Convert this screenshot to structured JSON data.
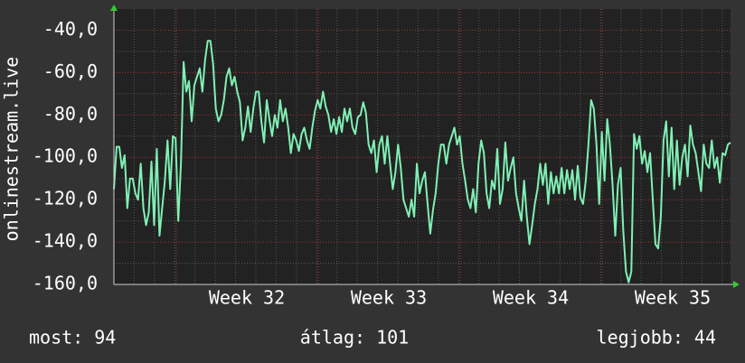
{
  "chart_data": {
    "type": "line",
    "y_label": "onlinestream.live",
    "x_labels": [
      "Week 32",
      "Week 33",
      "Week 34",
      "Week 35"
    ],
    "ylim": [
      -160,
      -30
    ],
    "yticks": [
      {
        "value": -160,
        "label": "-160,0"
      },
      {
        "value": -140,
        "label": "-140,0"
      },
      {
        "value": -120,
        "label": "-120,0"
      },
      {
        "value": -100,
        "label": "-100,0"
      },
      {
        "value": -80,
        "label": "-80,0"
      },
      {
        "value": -60,
        "label": "-60,0"
      },
      {
        "value": -40,
        "label": "-40,0"
      }
    ],
    "grid": true,
    "series": [
      {
        "color": "#7ff0b4",
        "values": [
          -115,
          -95,
          -95,
          -105,
          -99,
          -124,
          -110,
          -110,
          -117,
          -120,
          -103,
          -124,
          -132,
          -126,
          -102,
          -132,
          -96,
          -137,
          -124,
          -111,
          -92,
          -115,
          -90,
          -91,
          -130,
          -103,
          -55,
          -69,
          -64,
          -83,
          -66,
          -62,
          -58,
          -69,
          -54,
          -45,
          -45,
          -56,
          -77,
          -83,
          -80,
          -73,
          -62,
          -58,
          -66,
          -62,
          -69,
          -74,
          -92,
          -86,
          -76,
          -88,
          -77,
          -69,
          -69,
          -83,
          -93,
          -73,
          -82,
          -90,
          -80,
          -86,
          -73,
          -83,
          -77,
          -86,
          -98,
          -89,
          -92,
          -97,
          -89,
          -86,
          -92,
          -96,
          -86,
          -78,
          -73,
          -77,
          -69,
          -76,
          -80,
          -88,
          -82,
          -89,
          -81,
          -88,
          -77,
          -83,
          -77,
          -86,
          -89,
          -81,
          -80,
          -74,
          -79,
          -94,
          -98,
          -92,
          -107,
          -94,
          -90,
          -103,
          -90,
          -103,
          -115,
          -107,
          -94,
          -105,
          -120,
          -124,
          -128,
          -120,
          -128,
          -103,
          -117,
          -111,
          -107,
          -122,
          -136,
          -125,
          -117,
          -103,
          -94,
          -94,
          -103,
          -94,
          -90,
          -86,
          -94,
          -90,
          -103,
          -111,
          -120,
          -124,
          -115,
          -126,
          -103,
          -92,
          -98,
          -117,
          -124,
          -111,
          -115,
          -96,
          -122,
          -115,
          -93,
          -111,
          -105,
          -100,
          -117,
          -124,
          -130,
          -111,
          -128,
          -141,
          -132,
          -122,
          -115,
          -103,
          -113,
          -103,
          -122,
          -107,
          -117,
          -109,
          -117,
          -105,
          -117,
          -106,
          -115,
          -106,
          -120,
          -104,
          -119,
          -122,
          -111,
          -94,
          -73,
          -77,
          -94,
          -122,
          -88,
          -111,
          -82,
          -94,
          -113,
          -137,
          -113,
          -105,
          -135,
          -154,
          -159,
          -154,
          -89,
          -96,
          -90,
          -103,
          -97,
          -107,
          -98,
          -120,
          -141,
          -143,
          -128,
          -92,
          -83,
          -109,
          -86,
          -115,
          -92,
          -113,
          -100,
          -94,
          -109,
          -85,
          -94,
          -98,
          -107,
          -116,
          -94,
          -103,
          -105,
          -92,
          -105,
          -100,
          -112,
          -98,
          -99,
          -94,
          -93
        ]
      }
    ]
  },
  "footer": [
    "most: 94",
    "átlag: 101",
    "legjobb: 44"
  ]
}
